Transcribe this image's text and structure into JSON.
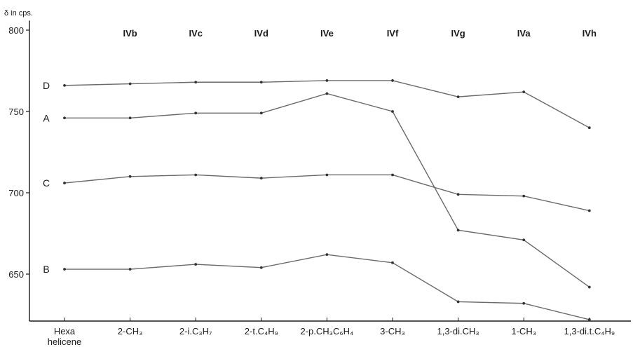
{
  "chart_data": {
    "type": "line",
    "unit_label": "δ in cps.",
    "ylim": [
      620,
      805
    ],
    "yticks": [
      650,
      700,
      750,
      800
    ],
    "categories": [
      "Hexa helicene",
      "2-CH₃",
      "2-i.C₃H₇",
      "2-t.C₄H₉",
      "2-p.CH₃C₆H₄",
      "3-CH₃",
      "1,3-di.CH₃",
      "1-CH₃",
      "1,3-di.t.C₄H₉"
    ],
    "top_labels": [
      "",
      "IVb",
      "IVc",
      "IVd",
      "IVe",
      "IVf",
      "IVg",
      "IVa",
      "IVh"
    ],
    "series": [
      {
        "name": "D",
        "values": [
          766,
          767,
          768,
          768,
          769,
          769,
          759,
          762,
          740
        ]
      },
      {
        "name": "A",
        "values": [
          746,
          746,
          749,
          749,
          761,
          750,
          677,
          671,
          642
        ]
      },
      {
        "name": "C",
        "values": [
          706,
          710,
          711,
          709,
          711,
          711,
          699,
          698,
          689
        ]
      },
      {
        "name": "B",
        "values": [
          653,
          653,
          656,
          654,
          662,
          657,
          633,
          632,
          622
        ]
      }
    ],
    "grid": false,
    "line_color": "#6a6a6a",
    "axis_color": "#1a1a1a"
  }
}
